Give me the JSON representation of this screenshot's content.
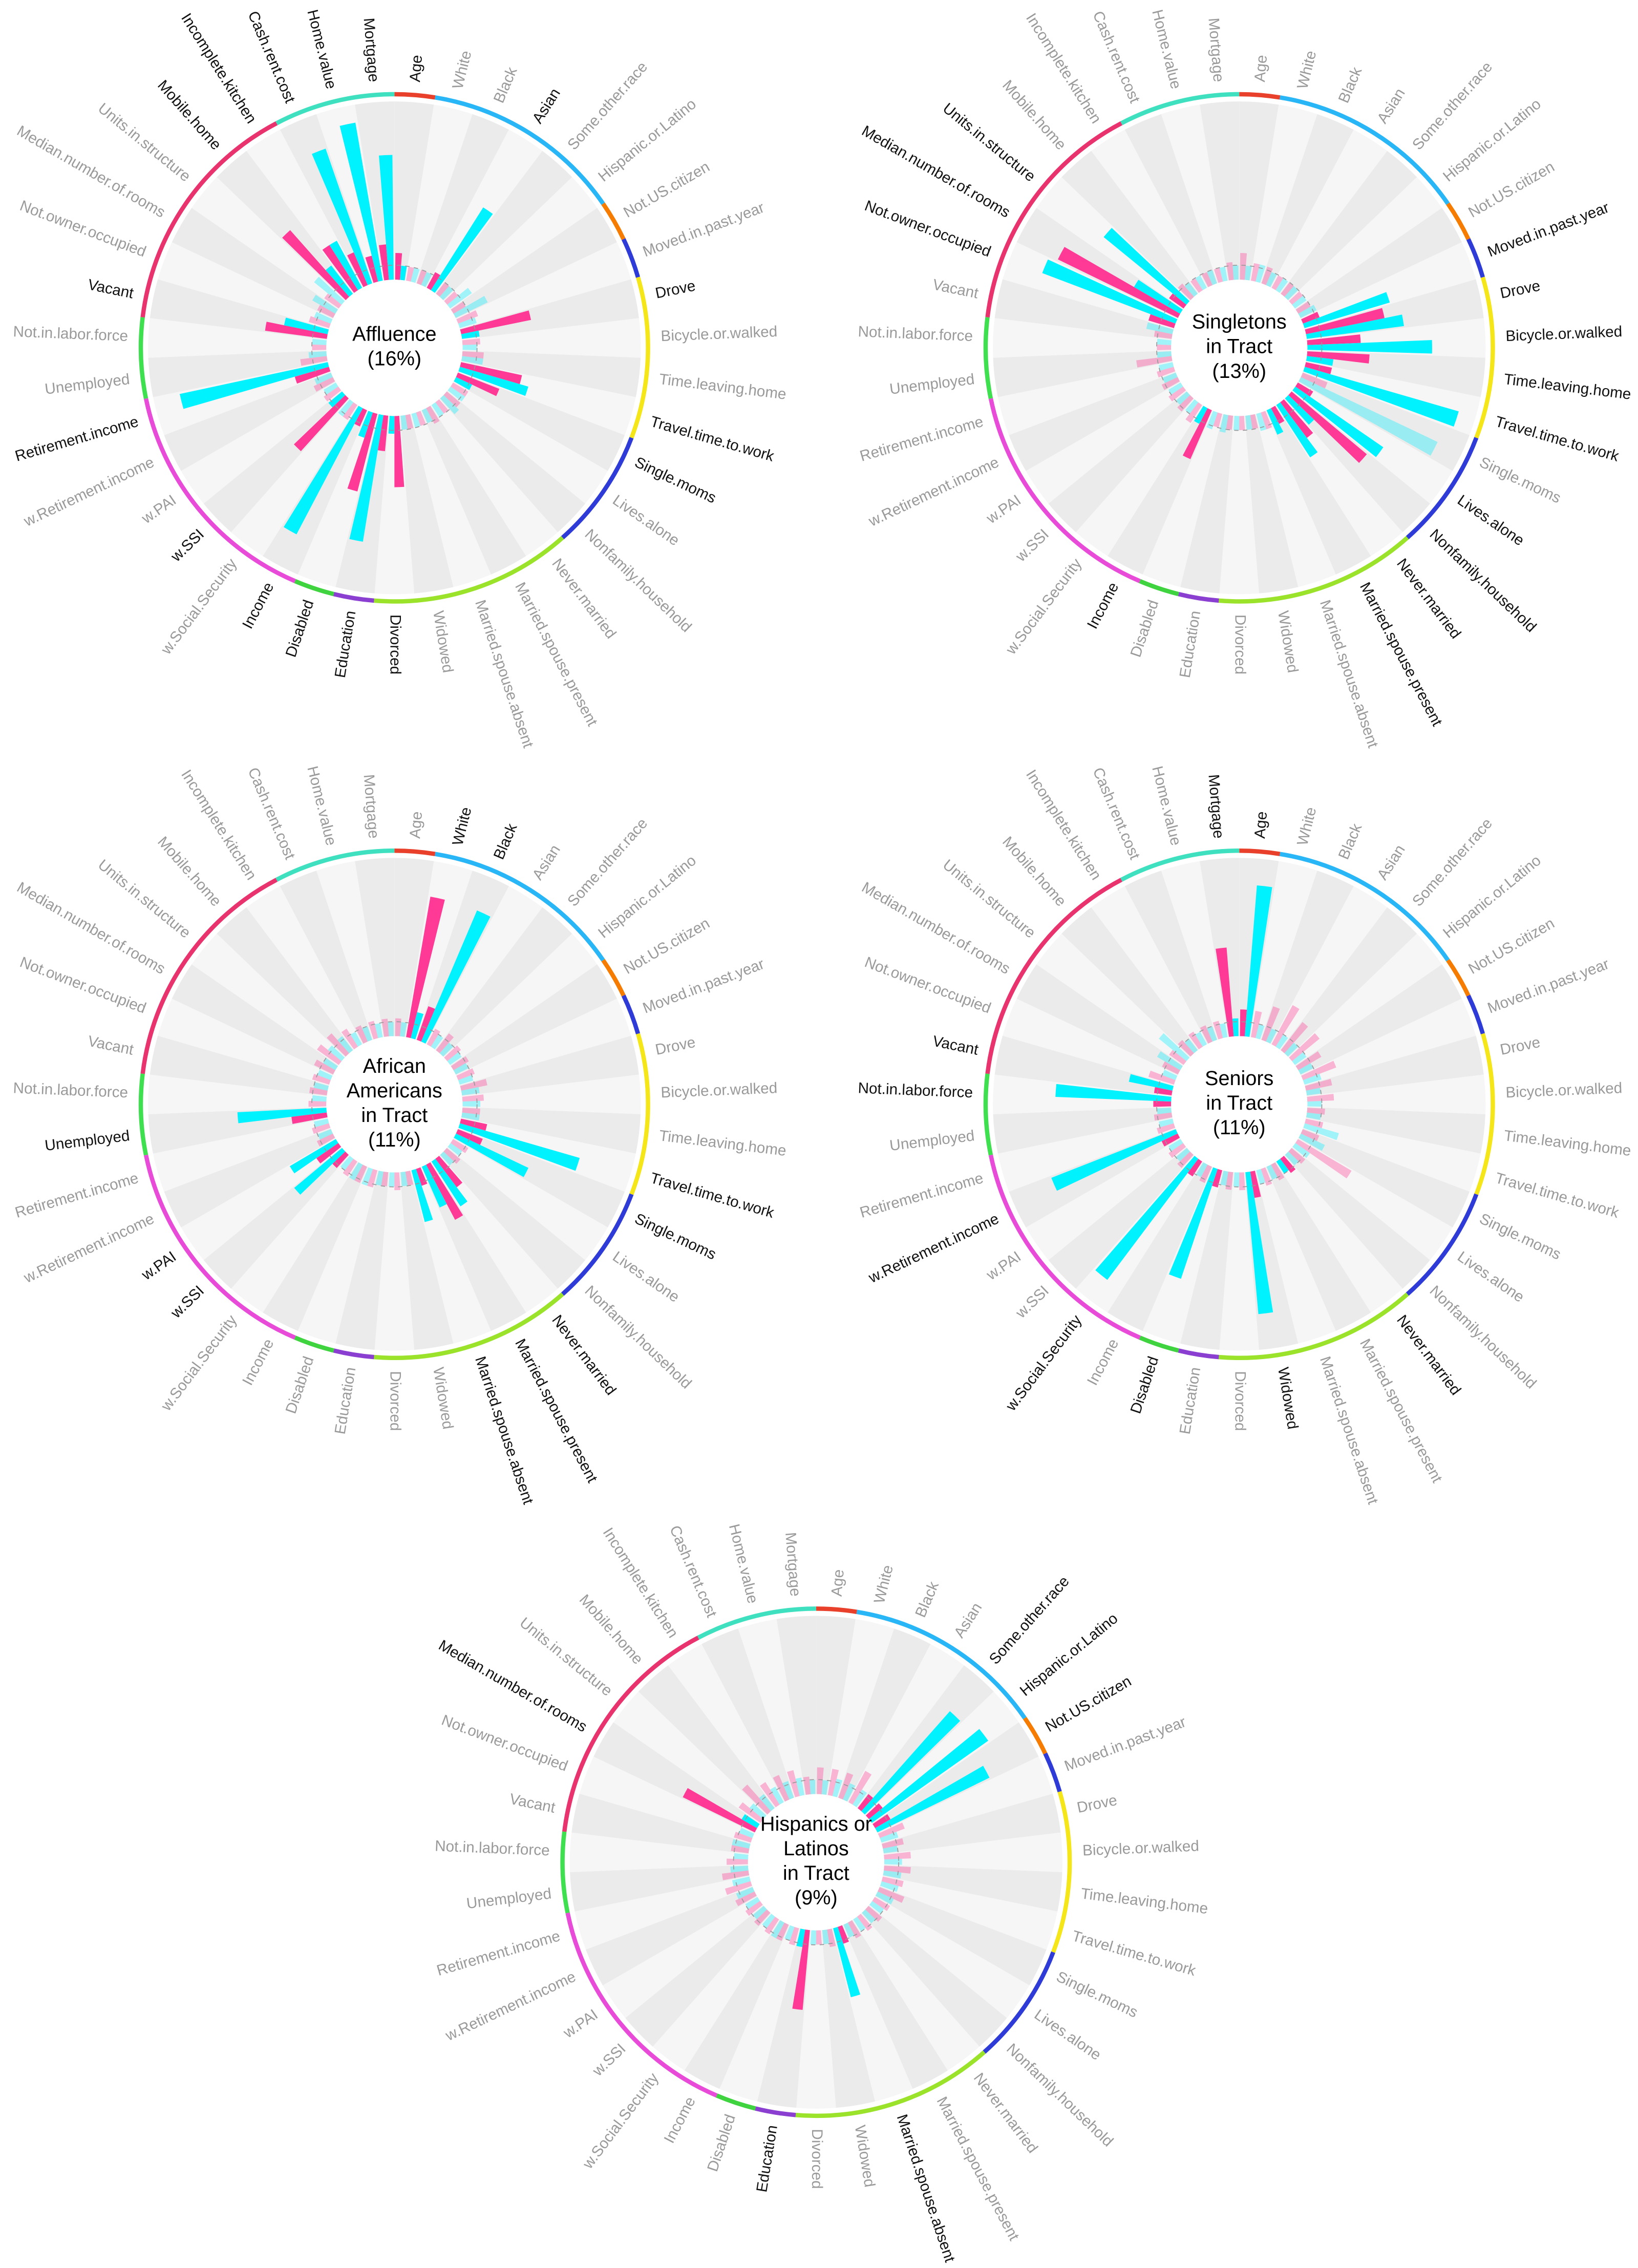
{
  "chart_data": [
    {
      "type": "radial_bar",
      "title": [
        "Affluence",
        "(16%)"
      ],
      "ylim": [
        0,
        100
      ],
      "categories": [
        "Age",
        "White",
        "Black",
        "Asian",
        "Some.other.race",
        "Hispanic.or.Latino",
        "Not.US.citizen",
        "Moved.in.past.year",
        "Drove",
        "Bicycle.or.walked",
        "Time.leaving.home",
        "Travel.time.to.work",
        "Single.moms",
        "Lives.alone",
        "Nonfamily.household",
        "Never.married",
        "Married.spouse.present",
        "Married.spouse.absent",
        "Widowed",
        "Divorced",
        "Education",
        "Disabled",
        "Income",
        "w.Social.Security",
        "w.SSI",
        "w.PAI",
        "w.Retirement.income",
        "Retirement.income",
        "Unemployed",
        "Not.in.labor.force",
        "Vacant",
        "Not.owner.occupied",
        "Median.number.of.rooms",
        "Units.in.structure",
        "Mobile.home",
        "Incomplete.kitchen",
        "Cash.rent.cost",
        "Home.value",
        "Mortgage"
      ],
      "series": [
        {
          "color": "#ff3a96",
          "values": [
            15,
            8,
            8,
            10,
            8,
            8,
            8,
            12,
            40,
            10,
            12,
            35,
            25,
            10,
            10,
            8,
            10,
            8,
            8,
            40,
            20,
            45,
            10,
            10,
            40,
            10,
            12,
            20,
            15,
            8,
            35,
            12,
            10,
            10,
            50,
            30,
            20,
            15,
            20
          ]
        },
        {
          "color": "#00f2ff",
          "values": [
            8,
            8,
            8,
            55,
            8,
            15,
            20,
            10,
            10,
            8,
            12,
            40,
            10,
            10,
            12,
            8,
            8,
            8,
            8,
            10,
            72,
            15,
            80,
            10,
            10,
            8,
            10,
            85,
            10,
            8,
            25,
            10,
            15,
            20,
            20,
            30,
            80,
            90,
            70
          ]
        }
      ],
      "highlight": [
        0,
        3,
        8,
        11,
        12,
        19,
        20,
        21,
        22,
        24,
        27,
        30,
        34,
        35,
        36,
        37,
        38
      ],
      "groups": [
        {
          "color": "#e8402a",
          "from": 0,
          "to": 0
        },
        {
          "color": "#29b6f6",
          "from": 1,
          "to": 5
        },
        {
          "color": "#f57c00",
          "from": 6,
          "to": 6
        },
        {
          "color": "#2e3bd6",
          "from": 7,
          "to": 7
        },
        {
          "color": "#f5e61a",
          "from": 8,
          "to": 11
        },
        {
          "color": "#2e3bd6",
          "from": 12,
          "to": 14
        },
        {
          "color": "#9be22a",
          "from": 15,
          "to": 19
        },
        {
          "color": "#8a3fd1",
          "from": 20,
          "to": 20
        },
        {
          "color": "#3fd43f",
          "from": 21,
          "to": 21
        },
        {
          "color": "#e84bd8",
          "from": 22,
          "to": 27
        },
        {
          "color": "#3fe04f",
          "from": 28,
          "to": 29
        },
        {
          "color": "#e8336e",
          "from": 30,
          "to": 35
        },
        {
          "color": "#3fe0c0",
          "from": 36,
          "to": 38
        }
      ]
    },
    {
      "type": "radial_bar",
      "title": [
        "Singletons",
        "in Tract",
        "(13%)"
      ],
      "ylim": [
        0,
        100
      ],
      "categories": [
        "Age",
        "White",
        "Black",
        "Asian",
        "Some.other.race",
        "Hispanic.or.Latino",
        "Not.US.citizen",
        "Moved.in.past.year",
        "Drove",
        "Bicycle.or.walked",
        "Time.leaving.home",
        "Travel.time.to.work",
        "Single.moms",
        "Lives.alone",
        "Nonfamily.household",
        "Never.married",
        "Married.spouse.present",
        "Married.spouse.absent",
        "Widowed",
        "Divorced",
        "Education",
        "Disabled",
        "Income",
        "w.Social.Security",
        "w.SSI",
        "w.PAI",
        "w.Retirement.income",
        "Retirement.income",
        "Unemployed",
        "Not.in.labor.force",
        "Vacant",
        "Not.owner.occupied",
        "Median.number.of.rooms",
        "Units.in.structure",
        "Mobile.home",
        "Incomplete.kitchen",
        "Cash.rent.cost",
        "Home.value",
        "Mortgage"
      ],
      "series": [
        {
          "color": "#ff3a96",
          "values": [
            15,
            10,
            10,
            8,
            8,
            8,
            8,
            10,
            45,
            30,
            35,
            15,
            15,
            10,
            55,
            25,
            10,
            10,
            8,
            8,
            8,
            8,
            30,
            12,
            10,
            10,
            10,
            10,
            20,
            8,
            10,
            15,
            75,
            10,
            10,
            8,
            8,
            8,
            10
          ]
        },
        {
          "color": "#00f2ff",
          "values": [
            8,
            10,
            8,
            8,
            8,
            8,
            10,
            50,
            55,
            70,
            15,
            90,
            85,
            60,
            20,
            35,
            15,
            10,
            8,
            8,
            10,
            10,
            10,
            8,
            8,
            8,
            8,
            8,
            8,
            8,
            15,
            80,
            30,
            60,
            8,
            8,
            8,
            8,
            8
          ]
        }
      ],
      "highlight": [
        7,
        8,
        9,
        10,
        11,
        13,
        14,
        15,
        16,
        22,
        31,
        32,
        33
      ],
      "groups": [
        {
          "color": "#e8402a",
          "from": 0,
          "to": 0
        },
        {
          "color": "#29b6f6",
          "from": 1,
          "to": 5
        },
        {
          "color": "#f57c00",
          "from": 6,
          "to": 6
        },
        {
          "color": "#2e3bd6",
          "from": 7,
          "to": 7
        },
        {
          "color": "#f5e61a",
          "from": 8,
          "to": 11
        },
        {
          "color": "#2e3bd6",
          "from": 12,
          "to": 14
        },
        {
          "color": "#9be22a",
          "from": 15,
          "to": 19
        },
        {
          "color": "#8a3fd1",
          "from": 20,
          "to": 20
        },
        {
          "color": "#3fd43f",
          "from": 21,
          "to": 21
        },
        {
          "color": "#e84bd8",
          "from": 22,
          "to": 27
        },
        {
          "color": "#3fe04f",
          "from": 28,
          "to": 29
        },
        {
          "color": "#e8336e",
          "from": 30,
          "to": 35
        },
        {
          "color": "#3fe0c0",
          "from": 36,
          "to": 38
        }
      ]
    },
    {
      "type": "radial_bar",
      "title": [
        "African",
        "Americans",
        "in Tract",
        "(11%)"
      ],
      "ylim": [
        0,
        100
      ],
      "categories": [
        "Age",
        "White",
        "Black",
        "Asian",
        "Some.other.race",
        "Hispanic.or.Latino",
        "Not.US.citizen",
        "Moved.in.past.year",
        "Drove",
        "Bicycle.or.walked",
        "Time.leaving.home",
        "Travel.time.to.work",
        "Single.moms",
        "Lives.alone",
        "Nonfamily.household",
        "Never.married",
        "Married.spouse.present",
        "Married.spouse.absent",
        "Widowed",
        "Divorced",
        "Education",
        "Disabled",
        "Income",
        "w.Social.Security",
        "w.SSI",
        "w.PAI",
        "w.Retirement.income",
        "Retirement.income",
        "Unemployed",
        "Not.in.labor.force",
        "Vacant",
        "Not.owner.occupied",
        "Median.number.of.rooms",
        "Units.in.structure",
        "Mobile.home",
        "Incomplete.kitchen",
        "Cash.rent.cost",
        "Home.value",
        "Mortgage"
      ],
      "series": [
        {
          "color": "#ff3a96",
          "values": [
            10,
            80,
            20,
            10,
            12,
            10,
            10,
            10,
            15,
            12,
            10,
            15,
            15,
            10,
            10,
            20,
            35,
            10,
            8,
            10,
            8,
            10,
            10,
            10,
            10,
            15,
            10,
            10,
            20,
            10,
            10,
            10,
            12,
            15,
            15,
            12,
            10,
            10,
            10
          ]
        },
        {
          "color": "#00f2ff",
          "values": [
            8,
            15,
            80,
            8,
            8,
            8,
            8,
            8,
            10,
            10,
            10,
            70,
            45,
            8,
            8,
            30,
            25,
            30,
            8,
            8,
            8,
            10,
            10,
            8,
            35,
            30,
            8,
            8,
            50,
            8,
            8,
            8,
            8,
            10,
            10,
            8,
            8,
            8,
            8
          ]
        }
      ],
      "highlight": [
        1,
        2,
        11,
        12,
        15,
        16,
        17,
        24,
        25,
        28
      ],
      "groups": [
        {
          "color": "#e8402a",
          "from": 0,
          "to": 0
        },
        {
          "color": "#29b6f6",
          "from": 1,
          "to": 5
        },
        {
          "color": "#f57c00",
          "from": 6,
          "to": 6
        },
        {
          "color": "#2e3bd6",
          "from": 7,
          "to": 7
        },
        {
          "color": "#f5e61a",
          "from": 8,
          "to": 11
        },
        {
          "color": "#2e3bd6",
          "from": 12,
          "to": 14
        },
        {
          "color": "#9be22a",
          "from": 15,
          "to": 19
        },
        {
          "color": "#8a3fd1",
          "from": 20,
          "to": 20
        },
        {
          "color": "#3fd43f",
          "from": 21,
          "to": 21
        },
        {
          "color": "#e84bd8",
          "from": 22,
          "to": 27
        },
        {
          "color": "#3fe04f",
          "from": 28,
          "to": 29
        },
        {
          "color": "#e8336e",
          "from": 30,
          "to": 35
        },
        {
          "color": "#3fe0c0",
          "from": 36,
          "to": 38
        }
      ]
    },
    {
      "type": "radial_bar",
      "title": [
        "Seniors",
        "in Tract",
        "(11%)"
      ],
      "ylim": [
        0,
        100
      ],
      "categories": [
        "Age",
        "White",
        "Black",
        "Asian",
        "Some.other.race",
        "Hispanic.or.Latino",
        "Not.US.citizen",
        "Moved.in.past.year",
        "Drove",
        "Bicycle.or.walked",
        "Time.leaving.home",
        "Travel.time.to.work",
        "Single.moms",
        "Lives.alone",
        "Nonfamily.household",
        "Never.married",
        "Married.spouse.present",
        "Married.spouse.absent",
        "Widowed",
        "Divorced",
        "Education",
        "Disabled",
        "Income",
        "w.Social.Security",
        "w.SSI",
        "w.PAI",
        "w.Retirement.income",
        "Retirement.income",
        "Unemployed",
        "Not.in.labor.force",
        "Vacant",
        "Not.owner.occupied",
        "Median.number.of.rooms",
        "Units.in.structure",
        "Mobile.home",
        "Incomplete.kitchen",
        "Cash.rent.cost",
        "Home.value",
        "Mortgage"
      ],
      "series": [
        {
          "color": "#ff3a96",
          "values": [
            15,
            15,
            20,
            25,
            20,
            20,
            15,
            20,
            15,
            15,
            10,
            10,
            10,
            35,
            10,
            10,
            10,
            10,
            15,
            10,
            10,
            10,
            10,
            10,
            10,
            10,
            10,
            10,
            10,
            10,
            10,
            15,
            10,
            10,
            10,
            10,
            10,
            10,
            50
          ]
        },
        {
          "color": "#00f2ff",
          "values": [
            85,
            8,
            8,
            8,
            8,
            8,
            8,
            10,
            8,
            8,
            8,
            20,
            15,
            10,
            8,
            8,
            8,
            8,
            80,
            8,
            8,
            65,
            8,
            85,
            8,
            8,
            75,
            8,
            8,
            65,
            25,
            8,
            15,
            20,
            8,
            8,
            8,
            8,
            10
          ]
        }
      ],
      "highlight": [
        0,
        15,
        18,
        21,
        23,
        26,
        29,
        30,
        38
      ],
      "groups": [
        {
          "color": "#e8402a",
          "from": 0,
          "to": 0
        },
        {
          "color": "#29b6f6",
          "from": 1,
          "to": 5
        },
        {
          "color": "#f57c00",
          "from": 6,
          "to": 6
        },
        {
          "color": "#2e3bd6",
          "from": 7,
          "to": 7
        },
        {
          "color": "#f5e61a",
          "from": 8,
          "to": 11
        },
        {
          "color": "#2e3bd6",
          "from": 12,
          "to": 14
        },
        {
          "color": "#9be22a",
          "from": 15,
          "to": 19
        },
        {
          "color": "#8a3fd1",
          "from": 20,
          "to": 20
        },
        {
          "color": "#3fd43f",
          "from": 21,
          "to": 21
        },
        {
          "color": "#e84bd8",
          "from": 22,
          "to": 27
        },
        {
          "color": "#3fe04f",
          "from": 28,
          "to": 29
        },
        {
          "color": "#e8336e",
          "from": 30,
          "to": 35
        },
        {
          "color": "#3fe0c0",
          "from": 36,
          "to": 38
        }
      ]
    },
    {
      "type": "radial_bar",
      "title": [
        "Hispanics or",
        "Latinos",
        "in Tract",
        "(9%)"
      ],
      "ylim": [
        0,
        100
      ],
      "categories": [
        "Age",
        "White",
        "Black",
        "Asian",
        "Some.other.race",
        "Hispanic.or.Latino",
        "Not.US.citizen",
        "Moved.in.past.year",
        "Drove",
        "Bicycle.or.walked",
        "Time.leaving.home",
        "Travel.time.to.work",
        "Single.moms",
        "Lives.alone",
        "Nonfamily.household",
        "Never.married",
        "Married.spouse.present",
        "Married.spouse.absent",
        "Widowed",
        "Divorced",
        "Education",
        "Disabled",
        "Income",
        "w.Social.Security",
        "w.SSI",
        "w.PAI",
        "w.Retirement.income",
        "Retirement.income",
        "Unemployed",
        "Not.in.labor.force",
        "Vacant",
        "Not.owner.occupied",
        "Median.number.of.rooms",
        "Units.in.structure",
        "Mobile.home",
        "Incomplete.kitchen",
        "Cash.rent.cost",
        "Home.value",
        "Mortgage"
      ],
      "series": [
        {
          "color": "#ff3a96",
          "values": [
            15,
            15,
            15,
            20,
            10,
            10,
            10,
            15,
            12,
            15,
            15,
            12,
            15,
            10,
            10,
            10,
            10,
            10,
            10,
            8,
            45,
            10,
            10,
            10,
            10,
            10,
            12,
            15,
            15,
            12,
            10,
            10,
            45,
            15,
            20,
            15,
            15,
            15,
            10
          ]
        },
        {
          "color": "#00f2ff",
          "values": [
            8,
            10,
            10,
            10,
            75,
            80,
            70,
            10,
            8,
            10,
            10,
            10,
            10,
            8,
            8,
            8,
            8,
            40,
            8,
            8,
            10,
            8,
            10,
            8,
            8,
            8,
            10,
            10,
            10,
            8,
            10,
            8,
            10,
            10,
            10,
            10,
            10,
            10,
            8
          ]
        }
      ],
      "highlight": [
        4,
        5,
        6,
        17,
        20,
        32
      ],
      "groups": [
        {
          "color": "#e8402a",
          "from": 0,
          "to": 0
        },
        {
          "color": "#29b6f6",
          "from": 1,
          "to": 5
        },
        {
          "color": "#f57c00",
          "from": 6,
          "to": 6
        },
        {
          "color": "#2e3bd6",
          "from": 7,
          "to": 7
        },
        {
          "color": "#f5e61a",
          "from": 8,
          "to": 11
        },
        {
          "color": "#2e3bd6",
          "from": 12,
          "to": 14
        },
        {
          "color": "#9be22a",
          "from": 15,
          "to": 19
        },
        {
          "color": "#8a3fd1",
          "from": 20,
          "to": 20
        },
        {
          "color": "#3fd43f",
          "from": 21,
          "to": 21
        },
        {
          "color": "#e84bd8",
          "from": 22,
          "to": 27
        },
        {
          "color": "#3fe04f",
          "from": 28,
          "to": 29
        },
        {
          "color": "#e8336e",
          "from": 30,
          "to": 35
        },
        {
          "color": "#3fe0c0",
          "from": 36,
          "to": 38
        }
      ]
    }
  ]
}
